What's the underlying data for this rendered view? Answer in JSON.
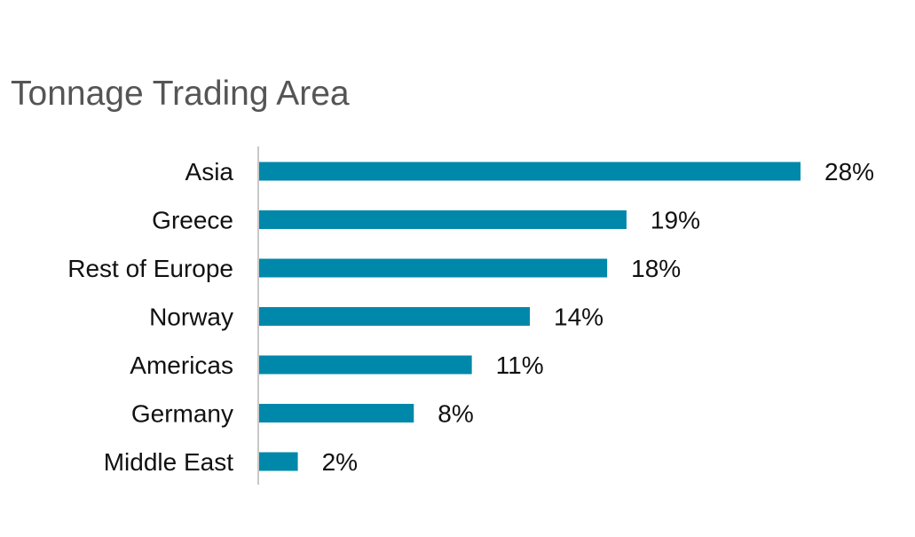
{
  "chart_data": {
    "type": "bar",
    "orientation": "horizontal",
    "title": "Tonnage Trading Area",
    "categories": [
      "Asia",
      "Greece",
      "Rest of Europe",
      "Norway",
      "Americas",
      "Germany",
      "Middle East"
    ],
    "values": [
      28,
      19,
      18,
      14,
      11,
      8,
      2
    ],
    "value_labels": [
      "28%",
      "19%",
      "18%",
      "14%",
      "11%",
      "8%",
      "2%"
    ],
    "unit": "%",
    "xlim": [
      0,
      28
    ],
    "grid": false,
    "legend": "none",
    "bar_color": "#0088AA",
    "axis_color": "#C8C8C8"
  }
}
